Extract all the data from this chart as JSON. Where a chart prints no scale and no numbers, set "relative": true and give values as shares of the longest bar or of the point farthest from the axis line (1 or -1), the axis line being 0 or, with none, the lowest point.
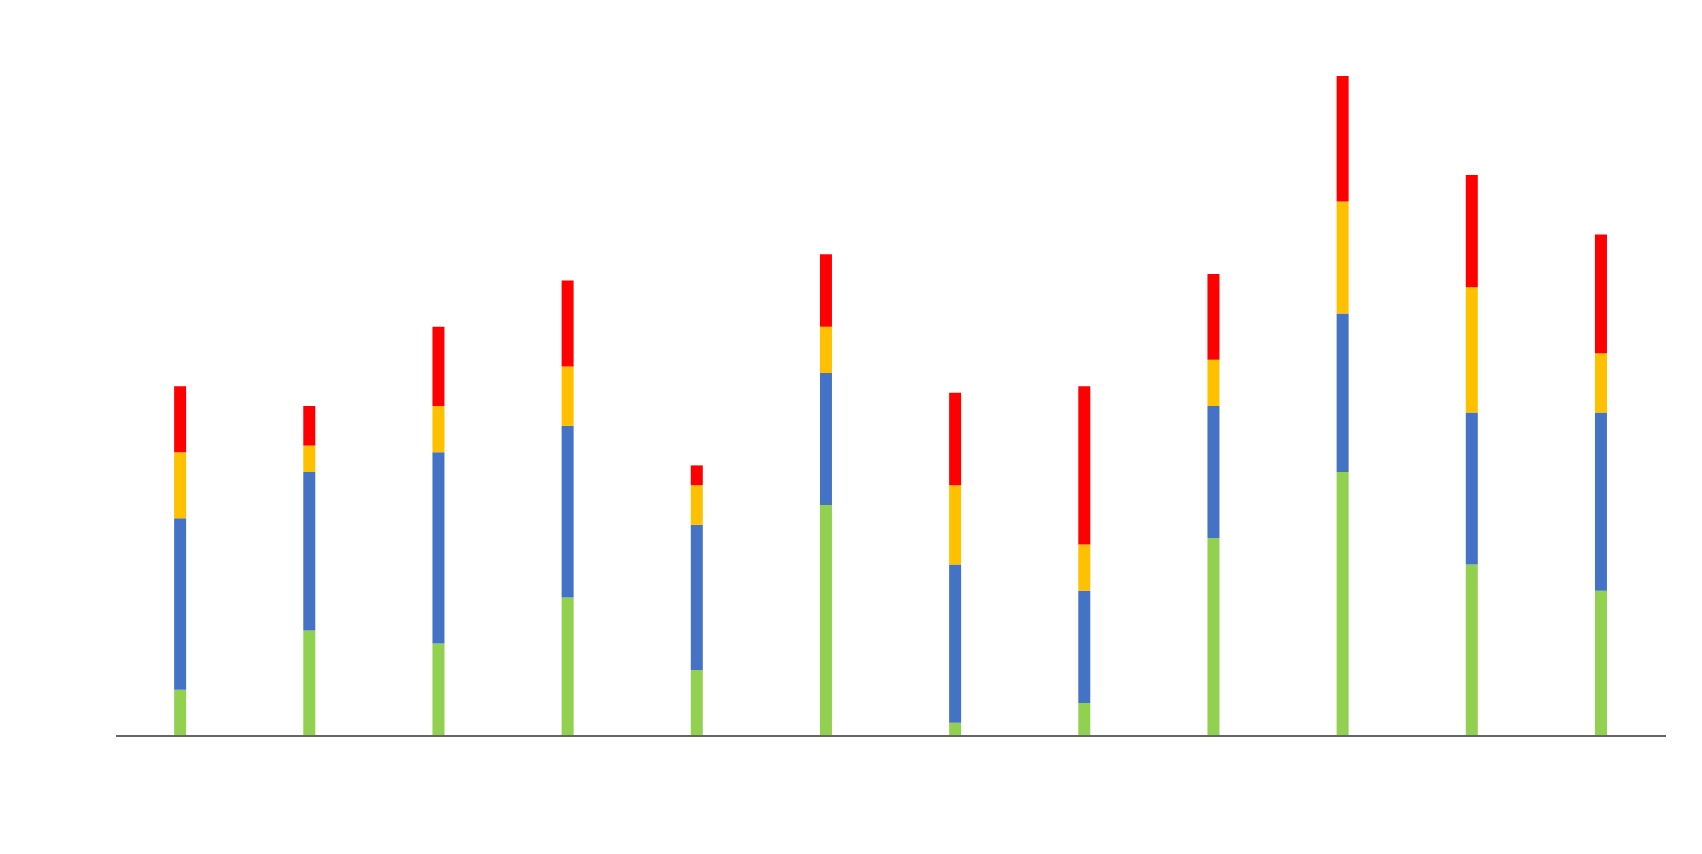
{
  "chart_data": {
    "type": "bar",
    "stacked": true,
    "relative": true,
    "categories": [
      null,
      null,
      null,
      null,
      null,
      null,
      null,
      null,
      null,
      null,
      null,
      null
    ],
    "series": [
      {
        "color": "#92d050",
        "values": [
          0.07,
          0.16,
          0.14,
          0.21,
          0.1,
          0.35,
          0.02,
          0.05,
          0.3,
          0.4,
          0.26,
          0.22
        ]
      },
      {
        "color": "#4472c4",
        "values": [
          0.26,
          0.24,
          0.29,
          0.26,
          0.22,
          0.2,
          0.24,
          0.17,
          0.2,
          0.24,
          0.23,
          0.27
        ]
      },
      {
        "color": "#ffc000",
        "values": [
          0.1,
          0.04,
          0.07,
          0.09,
          0.06,
          0.07,
          0.12,
          0.07,
          0.07,
          0.17,
          0.19,
          0.09
        ]
      },
      {
        "color": "#ff0000",
        "values": [
          0.1,
          0.06,
          0.12,
          0.13,
          0.03,
          0.11,
          0.14,
          0.24,
          0.13,
          0.19,
          0.17,
          0.18
        ]
      }
    ]
  }
}
